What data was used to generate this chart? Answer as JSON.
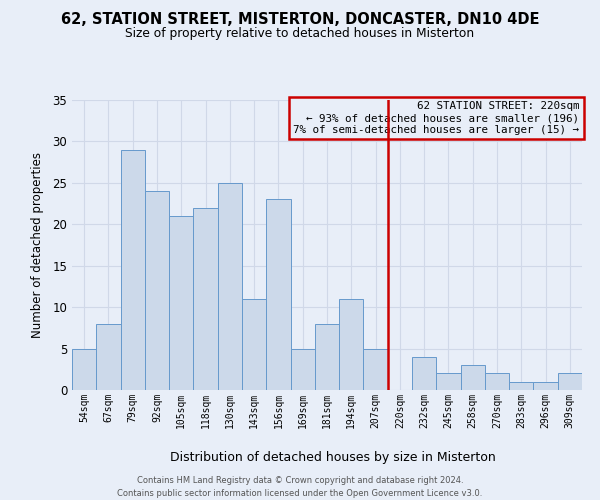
{
  "title": "62, STATION STREET, MISTERTON, DONCASTER, DN10 4DE",
  "subtitle": "Size of property relative to detached houses in Misterton",
  "xlabel": "Distribution of detached houses by size in Misterton",
  "ylabel": "Number of detached properties",
  "bar_labels": [
    "54sqm",
    "67sqm",
    "79sqm",
    "92sqm",
    "105sqm",
    "118sqm",
    "130sqm",
    "143sqm",
    "156sqm",
    "169sqm",
    "181sqm",
    "194sqm",
    "207sqm",
    "220sqm",
    "232sqm",
    "245sqm",
    "258sqm",
    "270sqm",
    "283sqm",
    "296sqm",
    "309sqm"
  ],
  "bar_values": [
    5,
    8,
    29,
    24,
    21,
    22,
    25,
    11,
    23,
    5,
    8,
    11,
    5,
    0,
    4,
    2,
    3,
    2,
    1,
    1,
    2
  ],
  "bar_color": "#ccd9ea",
  "bar_edge_color": "#6699cc",
  "highlight_line_x_label": "220sqm",
  "highlight_line_color": "#cc0000",
  "annotation_title": "62 STATION STREET: 220sqm",
  "annotation_line1": "← 93% of detached houses are smaller (196)",
  "annotation_line2": "7% of semi-detached houses are larger (15) →",
  "annotation_box_edge_color": "#cc0000",
  "ylim": [
    0,
    35
  ],
  "yticks": [
    0,
    5,
    10,
    15,
    20,
    25,
    30,
    35
  ],
  "grid_color": "#d0d8e8",
  "background_color": "#e8eef8",
  "footer_line1": "Contains HM Land Registry data © Crown copyright and database right 2024.",
  "footer_line2": "Contains public sector information licensed under the Open Government Licence v3.0."
}
